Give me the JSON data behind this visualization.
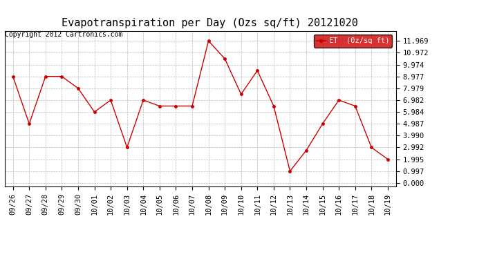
{
  "title": "Evapotranspiration per Day (Ozs sq/ft) 20121020",
  "copyright": "Copyright 2012 Cartronics.com",
  "legend_label": "ET  (0z/sq ft)",
  "x_labels": [
    "09/26",
    "09/27",
    "09/28",
    "09/29",
    "09/30",
    "10/01",
    "10/02",
    "10/03",
    "10/04",
    "10/05",
    "10/06",
    "10/07",
    "10/08",
    "10/09",
    "10/10",
    "10/11",
    "10/12",
    "10/13",
    "10/14",
    "10/15",
    "10/16",
    "10/17",
    "10/18",
    "10/19"
  ],
  "y_values": [
    8.977,
    4.987,
    8.977,
    8.977,
    7.979,
    5.984,
    6.982,
    2.992,
    6.982,
    6.482,
    6.482,
    6.482,
    11.969,
    10.472,
    7.479,
    9.474,
    6.482,
    0.997,
    2.742,
    4.987,
    6.982,
    6.482,
    2.992,
    1.995
  ],
  "y_ticks": [
    0.0,
    0.997,
    1.995,
    2.992,
    3.99,
    4.987,
    5.984,
    6.982,
    7.979,
    8.977,
    9.974,
    10.972,
    11.969
  ],
  "ylim": [
    -0.3,
    12.8
  ],
  "line_color": "#cc0000",
  "marker_color": "#cc0000",
  "legend_bg": "#cc0000",
  "legend_text_color": "#ffffff",
  "bg_color": "#ffffff",
  "grid_color": "#bbbbbb",
  "title_fontsize": 11,
  "copyright_fontsize": 7,
  "tick_fontsize": 7.5
}
